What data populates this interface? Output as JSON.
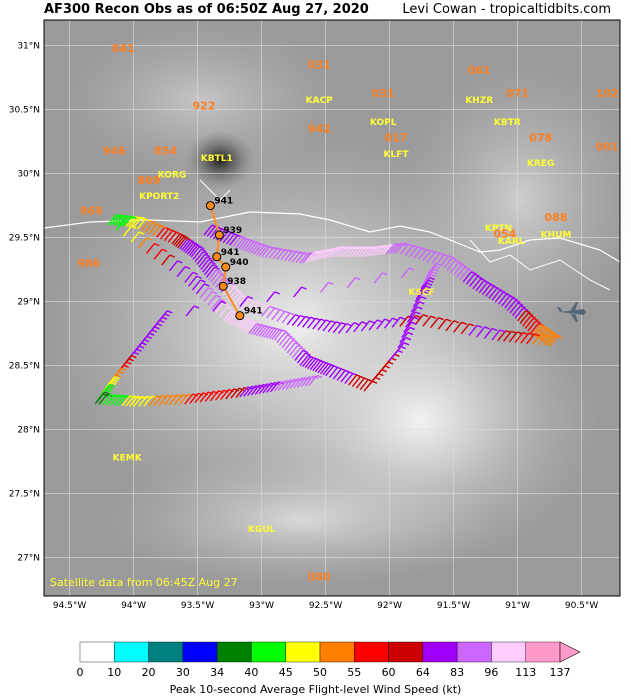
{
  "header": {
    "title": "AF300 Recon Obs as of 06:50Z Aug 27, 2020",
    "credit": "Levi Cowan - tropicaltidbits.com"
  },
  "footer_note": "Satellite data from 06:45Z Aug 27",
  "axes": {
    "lon_labels": [
      "94.5°W",
      "94°W",
      "93.5°W",
      "93°W",
      "92.5°W",
      "92°W",
      "91.5°W",
      "91°W",
      "90.5°W"
    ],
    "lat_labels": [
      "31°N",
      "30.5°N",
      "30°N",
      "29.5°N",
      "29°N",
      "28.5°N",
      "28°N",
      "27.5°N",
      "27°N"
    ],
    "lon_range": [
      -94.7,
      -90.2
    ],
    "lat_range": [
      26.7,
      31.2
    ]
  },
  "stations": [
    {
      "id": "KEMK",
      "lon": -94.05,
      "lat": 27.76
    },
    {
      "id": "KGUL",
      "lon": -93.0,
      "lat": 27.2
    },
    {
      "id": "KACP",
      "lon": -92.55,
      "lat": 30.55
    },
    {
      "id": "KOPL",
      "lon": -92.05,
      "lat": 30.38
    },
    {
      "id": "KLFT",
      "lon": -91.95,
      "lat": 30.13
    },
    {
      "id": "KHZR",
      "lon": -91.3,
      "lat": 30.55
    },
    {
      "id": "KBTR",
      "lon": -91.08,
      "lat": 30.38
    },
    {
      "id": "KREG",
      "lon": -90.82,
      "lat": 30.06
    },
    {
      "id": "KHUM",
      "lon": -90.7,
      "lat": 29.5
    },
    {
      "id": "KPTN",
      "lon": -91.15,
      "lat": 29.55
    },
    {
      "id": "KARL",
      "lon": -91.05,
      "lat": 29.45
    },
    {
      "id": "KORG",
      "lon": -93.7,
      "lat": 29.97
    },
    {
      "id": "KBTL1",
      "lon": -93.35,
      "lat": 30.1
    },
    {
      "id": "KPORT2",
      "lon": -93.8,
      "lat": 29.8
    },
    {
      "id": "KSCF",
      "lon": -91.75,
      "lat": 29.05
    }
  ],
  "pressures": [
    {
      "value": "041",
      "lon": -94.08,
      "lat": 30.95
    },
    {
      "value": "922",
      "lon": -93.45,
      "lat": 30.5
    },
    {
      "value": "031",
      "lon": -92.55,
      "lat": 30.82
    },
    {
      "value": "942",
      "lon": -92.55,
      "lat": 30.32
    },
    {
      "value": "031",
      "lon": -92.05,
      "lat": 30.6
    },
    {
      "value": "017",
      "lon": -91.95,
      "lat": 30.25
    },
    {
      "value": "061",
      "lon": -91.3,
      "lat": 30.78
    },
    {
      "value": "071",
      "lon": -91.0,
      "lat": 30.6
    },
    {
      "value": "078",
      "lon": -90.82,
      "lat": 30.25
    },
    {
      "value": "102",
      "lon": -90.3,
      "lat": 30.6
    },
    {
      "value": "091",
      "lon": -90.3,
      "lat": 30.18
    },
    {
      "value": "088",
      "lon": -90.7,
      "lat": 29.63
    },
    {
      "value": "054",
      "lon": -91.1,
      "lat": 29.5
    },
    {
      "value": "946",
      "lon": -94.15,
      "lat": 30.15
    },
    {
      "value": "854",
      "lon": -93.75,
      "lat": 30.15
    },
    {
      "value": "869",
      "lon": -93.88,
      "lat": 29.92
    },
    {
      "value": "969",
      "lon": -94.33,
      "lat": 29.68
    },
    {
      "value": "986",
      "lon": -94.35,
      "lat": 29.27
    },
    {
      "value": "080",
      "lon": -92.55,
      "lat": 26.82
    }
  ],
  "center_fixes": [
    "941",
    "939",
    "941",
    "940",
    "938",
    "941"
  ],
  "flight_track": [
    {
      "lon": -93.45,
      "lat": 29.52,
      "wind": 70
    },
    {
      "lon": -93.2,
      "lat": 29.42,
      "wind": 85
    },
    {
      "lon": -93.0,
      "lat": 29.35,
      "wind": 90
    },
    {
      "lon": -92.7,
      "lat": 29.3,
      "wind": 95
    },
    {
      "lon": -92.45,
      "lat": 29.35,
      "wind": 100
    },
    {
      "lon": -92.2,
      "lat": 29.35,
      "wind": 98
    },
    {
      "lon": -91.95,
      "lat": 29.38,
      "wind": 95
    },
    {
      "lon": -91.6,
      "lat": 29.28,
      "wind": 88
    },
    {
      "lon": -91.35,
      "lat": 29.1,
      "wind": 80
    },
    {
      "lon": -91.1,
      "lat": 28.95,
      "wind": 70
    },
    {
      "lon": -90.9,
      "lat": 28.75,
      "wind": 55
    },
    {
      "lon": -90.75,
      "lat": 28.65,
      "wind": 50
    },
    {
      "lon": -91.2,
      "lat": 28.7,
      "wind": 65
    },
    {
      "lon": -91.8,
      "lat": 28.82,
      "wind": 62
    },
    {
      "lon": -92.4,
      "lat": 28.75,
      "wind": 70
    },
    {
      "lon": -92.8,
      "lat": 28.82,
      "wind": 80
    },
    {
      "lon": -93.2,
      "lat": 28.95,
      "wind": 110
    },
    {
      "lon": -93.4,
      "lat": 29.15,
      "wind": 85
    },
    {
      "lon": -93.55,
      "lat": 29.35,
      "wind": 70
    },
    {
      "lon": -93.7,
      "lat": 29.45,
      "wind": 60
    },
    {
      "lon": -94.0,
      "lat": 29.58,
      "wind": 48
    },
    {
      "lon": -94.2,
      "lat": 29.6,
      "wind": 40
    },
    {
      "lon": -93.6,
      "lat": 29.15,
      "wind": 70
    },
    {
      "lon": -93.3,
      "lat": 28.85,
      "wind": 105
    },
    {
      "lon": -93.1,
      "lat": 28.75,
      "wind": 95
    },
    {
      "lon": -92.9,
      "lat": 28.7,
      "wind": 90
    },
    {
      "lon": -92.7,
      "lat": 28.5,
      "wind": 80
    },
    {
      "lon": -92.5,
      "lat": 28.42,
      "wind": 68
    },
    {
      "lon": -92.2,
      "lat": 28.3,
      "wind": 60
    },
    {
      "lon": -91.95,
      "lat": 28.6,
      "wind": 65
    },
    {
      "lon": -91.8,
      "lat": 29.0,
      "wind": 80
    },
    {
      "lon": -91.7,
      "lat": 29.22,
      "wind": 85
    },
    {
      "lon": -93.8,
      "lat": 28.85,
      "wind": 80
    },
    {
      "lon": -94.0,
      "lat": 28.6,
      "wind": 70
    },
    {
      "lon": -94.2,
      "lat": 28.35,
      "wind": 50
    },
    {
      "lon": -94.3,
      "lat": 28.2,
      "wind": 38
    },
    {
      "lon": -94.0,
      "lat": 28.18,
      "wind": 48
    },
    {
      "lon": -93.6,
      "lat": 28.2,
      "wind": 55
    },
    {
      "lon": -93.2,
      "lat": 28.25,
      "wind": 62
    },
    {
      "lon": -92.9,
      "lat": 28.3,
      "wind": 85
    },
    {
      "lon": -92.6,
      "lat": 28.35,
      "wind": 88
    }
  ],
  "colorbar": {
    "title": "Peak 10-second Average Flight-level Wind Speed (kt)",
    "ticks": [
      "0",
      "10",
      "20",
      "30",
      "34",
      "40",
      "45",
      "50",
      "55",
      "60",
      "64",
      "83",
      "96",
      "113",
      "137"
    ],
    "colors": [
      "#ffffff",
      "#00ffff",
      "#008080",
      "#0000ff",
      "#008000",
      "#00ff00",
      "#ffff00",
      "#ff8000",
      "#ff0000",
      "#cc0000",
      "#a000ff",
      "#cc66ff",
      "#ffccff",
      "#ff99cc"
    ]
  }
}
